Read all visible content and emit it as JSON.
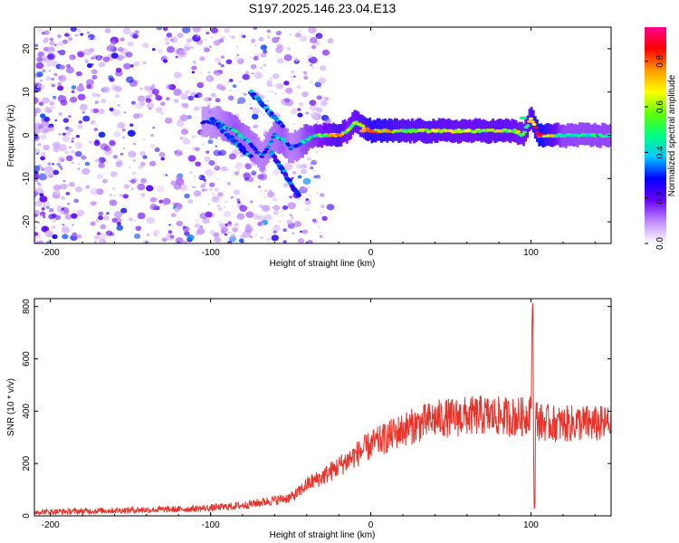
{
  "title": "S197.2025.146.23.04.E13",
  "colors": {
    "snr_line": "#e8332a",
    "frame": "#000000",
    "low_amp": "#c9a9f0",
    "mid_amp": "#7a1ee0",
    "high_amp": "#ff2a2a"
  },
  "chart_data": [
    {
      "type": "heatmap",
      "title": "S197.2025.146.23.04.E13",
      "xlabel": "Height of straight line (km)",
      "ylabel": "Frequency (Hz)",
      "xlim": [
        -210,
        150
      ],
      "ylim": [
        -25,
        25
      ],
      "xticks": [
        -200,
        -100,
        0,
        100
      ],
      "yticks": [
        -20,
        -10,
        0,
        10,
        20
      ],
      "colorbar": {
        "label": "Normalized spectral amplitude",
        "range": [
          0,
          0.95
        ],
        "ticks": [
          0.0,
          0.2,
          0.4,
          0.6,
          0.8
        ],
        "colormap": [
          "#ffffff",
          "#c08cff",
          "#6a00ff",
          "#0000ff",
          "#00c8ff",
          "#00ff80",
          "#60ff00",
          "#ffff00",
          "#ff9a00",
          "#ff0000",
          "#ff0090"
        ]
      },
      "ridge": {
        "x": [
          -105,
          -95,
          -85,
          -75,
          -68,
          -60,
          -55,
          -50,
          -45,
          -40,
          -35,
          -30,
          -20,
          -15,
          -10,
          -5,
          0,
          10,
          20,
          40,
          60,
          80,
          90,
          95,
          100,
          105,
          120,
          150
        ],
        "y": [
          3,
          3,
          1,
          -2,
          -5,
          0,
          -1,
          -3,
          -2,
          -1,
          0,
          0,
          0,
          1,
          3,
          2,
          1,
          1,
          1,
          1,
          1,
          1,
          1,
          0,
          4,
          0,
          0,
          0
        ],
        "amp": [
          0.3,
          0.35,
          0.45,
          0.4,
          0.35,
          0.4,
          0.45,
          0.35,
          0.4,
          0.5,
          0.55,
          0.6,
          0.75,
          0.6,
          0.65,
          0.75,
          0.85,
          0.8,
          0.7,
          0.7,
          0.65,
          0.7,
          0.65,
          0.6,
          0.75,
          0.95,
          0.5,
          0.5
        ]
      },
      "branches": [
        {
          "x": [
            -75,
            -55
          ],
          "y": [
            10,
            2
          ],
          "amp": 0.35
        },
        {
          "x": [
            -62,
            -45
          ],
          "y": [
            -4,
            -14
          ],
          "amp": 0.3
        },
        {
          "x": [
            -100,
            -75
          ],
          "y": [
            4,
            -5
          ],
          "amp": 0.35
        }
      ]
    },
    {
      "type": "line",
      "xlabel": "Height of straight line (km)",
      "ylabel": "SNR (10 * v/v)",
      "xlim": [
        -210,
        150
      ],
      "ylim": [
        0,
        830
      ],
      "xticks": [
        -200,
        -100,
        0,
        100
      ],
      "yticks": [
        0,
        200,
        400,
        600,
        800
      ],
      "series": [
        {
          "x": [
            -210,
            -180,
            -150,
            -120,
            -100,
            -80,
            -70,
            -60,
            -50,
            -45,
            -40,
            -30,
            -20,
            -10,
            0,
            10,
            20,
            30,
            40,
            50,
            60,
            70,
            80,
            90,
            97,
            100,
            101,
            102,
            103,
            105,
            110,
            120,
            130,
            140,
            150
          ],
          "y": [
            15,
            18,
            22,
            25,
            30,
            40,
            50,
            60,
            70,
            90,
            120,
            150,
            190,
            230,
            270,
            300,
            330,
            350,
            370,
            375,
            380,
            385,
            380,
            378,
            380,
            420,
            830,
            20,
            380,
            360,
            355,
            350,
            355,
            350,
            352
          ]
        }
      ]
    }
  ]
}
